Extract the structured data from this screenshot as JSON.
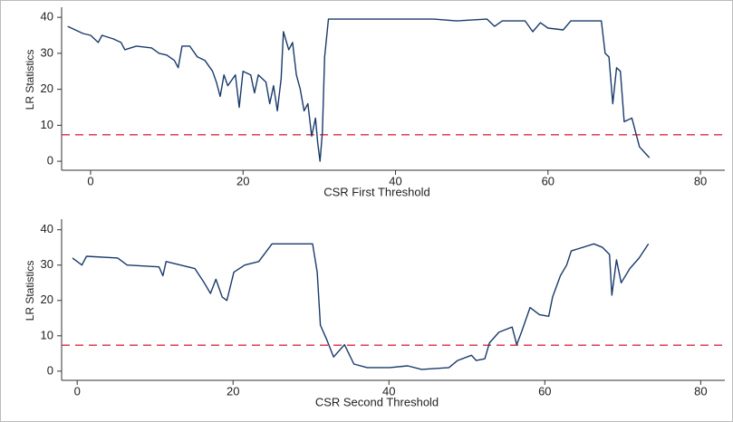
{
  "chart_data": [
    {
      "type": "line",
      "x_label": "CSR First Threshold",
      "y_label": "LR Statistics",
      "color": "#1a3a6b",
      "x": [
        -3,
        -1,
        0,
        1,
        1.5,
        3,
        4,
        4.5,
        6,
        8,
        9,
        10,
        11,
        11.5,
        12,
        13,
        14,
        15,
        16,
        16.5,
        17,
        17.5,
        18,
        19,
        19.5,
        20,
        21,
        21.5,
        22,
        23,
        23.5,
        24,
        24.5,
        25,
        25.3,
        26,
        26.5,
        27,
        27.5,
        28,
        28.5,
        29,
        29.5,
        29.8,
        30.1,
        30.4,
        30.7,
        31.2,
        45,
        48,
        52,
        53,
        54,
        57,
        58,
        59,
        60,
        62,
        63,
        67,
        67.5,
        68,
        68.5,
        69,
        69.5,
        70,
        71,
        71.5,
        72,
        73.3
      ],
      "values": [
        37.5,
        35.5,
        35,
        33,
        35,
        34,
        33,
        31,
        32,
        31.5,
        30,
        29.5,
        28,
        26,
        32,
        32,
        29,
        28,
        25,
        22,
        18,
        24,
        21,
        24,
        15,
        25,
        24,
        19,
        24,
        22,
        16,
        21,
        14,
        23,
        36,
        31,
        33,
        24,
        20,
        14,
        16,
        7,
        12,
        5,
        0,
        8,
        29,
        39.5,
        39.5,
        39,
        39.5,
        37.5,
        39,
        39,
        36,
        38.5,
        37,
        36.5,
        39,
        39,
        30,
        29,
        16,
        26,
        25,
        11,
        12,
        8,
        4,
        1
      ],
      "reference_line": {
        "value": 7.35,
        "color": "#e0283c"
      },
      "xlim": [
        -3.8,
        83.2
      ],
      "ylim": [
        -2.5,
        42.8
      ],
      "xticks": [
        0,
        20,
        40,
        60,
        80
      ],
      "yticks": [
        0,
        10,
        20,
        30,
        40
      ]
    },
    {
      "type": "line",
      "x_label": "CSR Second Threshold",
      "y_label": "LR Statistics",
      "color": "#1a3a6b",
      "x": [
        -0.6,
        0.6,
        1.2,
        5.2,
        6.4,
        10.5,
        11,
        11.4,
        15.1,
        16.3,
        17.1,
        17.8,
        18.6,
        19.2,
        20.1,
        21.5,
        23.3,
        25,
        30.2,
        30.8,
        31.2,
        32,
        32.9,
        34.3,
        35.5,
        37.2,
        40.1,
        42.4,
        44.2,
        47.7,
        48.8,
        50.6,
        51.2,
        52.3,
        52.9,
        54.1,
        55.8,
        56.4,
        57,
        58.1,
        59.3,
        60.5,
        61,
        62,
        62.8,
        63.4,
        66.3,
        67.4,
        68.3,
        68.6,
        69.2,
        69.8,
        70.9,
        72.1,
        73.3
      ],
      "values": [
        32,
        30,
        32.5,
        32,
        30,
        29.5,
        27,
        31,
        29,
        25,
        22,
        26,
        21,
        20,
        28,
        30,
        31,
        36,
        36,
        28,
        13,
        9,
        4,
        7.5,
        2,
        1,
        1,
        1.5,
        0.5,
        1,
        3,
        4.5,
        3,
        3.5,
        8,
        11,
        12.5,
        7.5,
        11,
        18,
        16,
        15.5,
        21,
        27,
        30,
        34,
        36,
        35,
        33,
        21.5,
        31.5,
        25,
        29,
        32,
        36
      ],
      "reference_line": {
        "value": 7.35,
        "color": "#e0283c"
      },
      "xlim": [
        -2,
        83.1
      ],
      "ylim": [
        -2.6,
        43
      ],
      "xticks": [
        0,
        20,
        40,
        60,
        80
      ],
      "yticks": [
        0,
        10,
        20,
        30,
        40
      ]
    }
  ]
}
